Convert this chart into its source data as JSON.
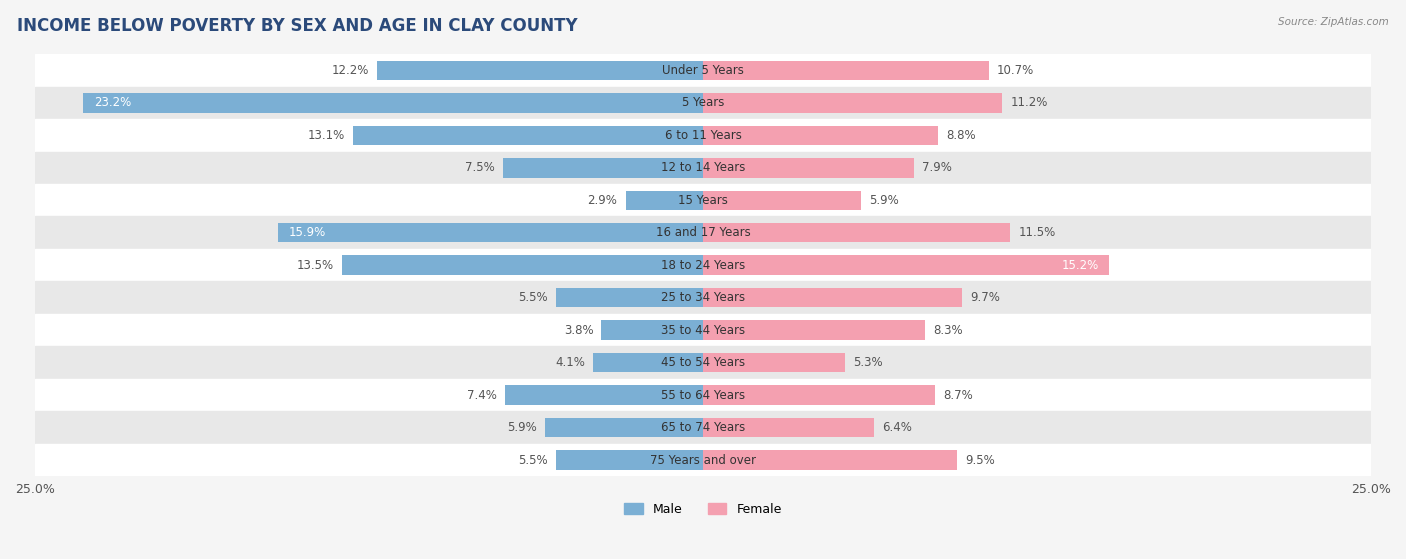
{
  "title": "INCOME BELOW POVERTY BY SEX AND AGE IN CLAY COUNTY",
  "source": "Source: ZipAtlas.com",
  "categories": [
    "Under 5 Years",
    "5 Years",
    "6 to 11 Years",
    "12 to 14 Years",
    "15 Years",
    "16 and 17 Years",
    "18 to 24 Years",
    "25 to 34 Years",
    "35 to 44 Years",
    "45 to 54 Years",
    "55 to 64 Years",
    "65 to 74 Years",
    "75 Years and over"
  ],
  "male": [
    12.2,
    23.2,
    13.1,
    7.5,
    2.9,
    15.9,
    13.5,
    5.5,
    3.8,
    4.1,
    7.4,
    5.9,
    5.5
  ],
  "female": [
    10.7,
    11.2,
    8.8,
    7.9,
    5.9,
    11.5,
    15.2,
    9.7,
    8.3,
    5.3,
    8.7,
    6.4,
    9.5
  ],
  "male_color": "#7bafd4",
  "female_color": "#f4a0b0",
  "white_threshold": 15.0,
  "xlim": 25.0,
  "bar_height": 0.6,
  "background_color": "#f5f5f5",
  "row_colors": [
    "#ffffff",
    "#e8e8e8"
  ],
  "title_fontsize": 12,
  "label_fontsize": 8.5,
  "category_fontsize": 8.5,
  "axis_label_fontsize": 9,
  "legend_fontsize": 9
}
